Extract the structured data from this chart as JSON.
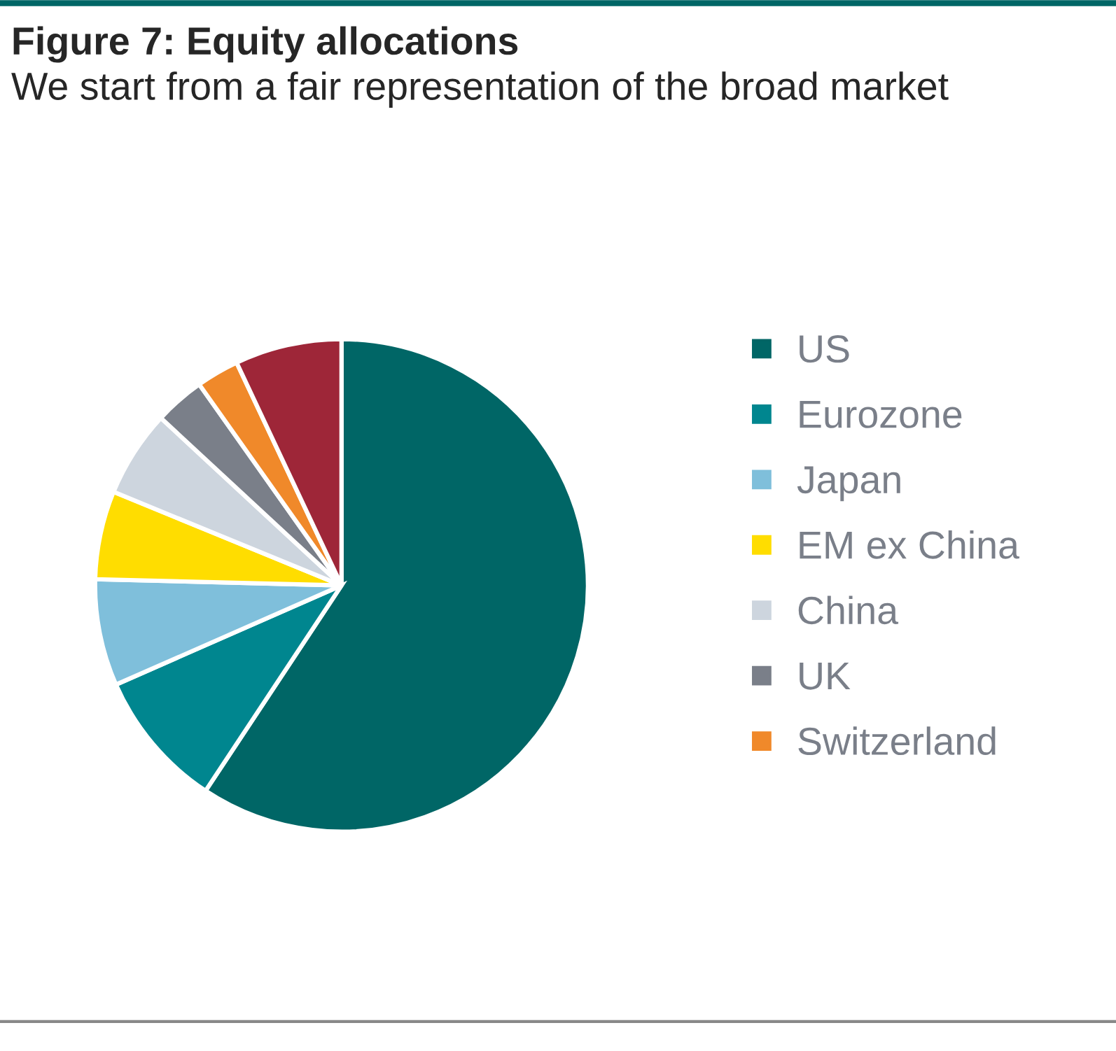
{
  "chart_data": {
    "type": "pie",
    "title": "Figure 7: Equity allocations",
    "subtitle": "We start from a fair representation of the broad market",
    "categories": [
      "US",
      "Eurozone",
      "Japan",
      "EM ex China",
      "China",
      "UK",
      "Switzerland",
      null
    ],
    "values": [
      59.3,
      9.1,
      7.0,
      5.8,
      5.7,
      3.3,
      2.8,
      7.0
    ],
    "colors": [
      "#006666",
      "#00868f",
      "#7fbfdb",
      "#ffdd00",
      "#cdd5de",
      "#7a7f89",
      "#f0892a",
      "#9e2638"
    ],
    "legend": "right"
  }
}
